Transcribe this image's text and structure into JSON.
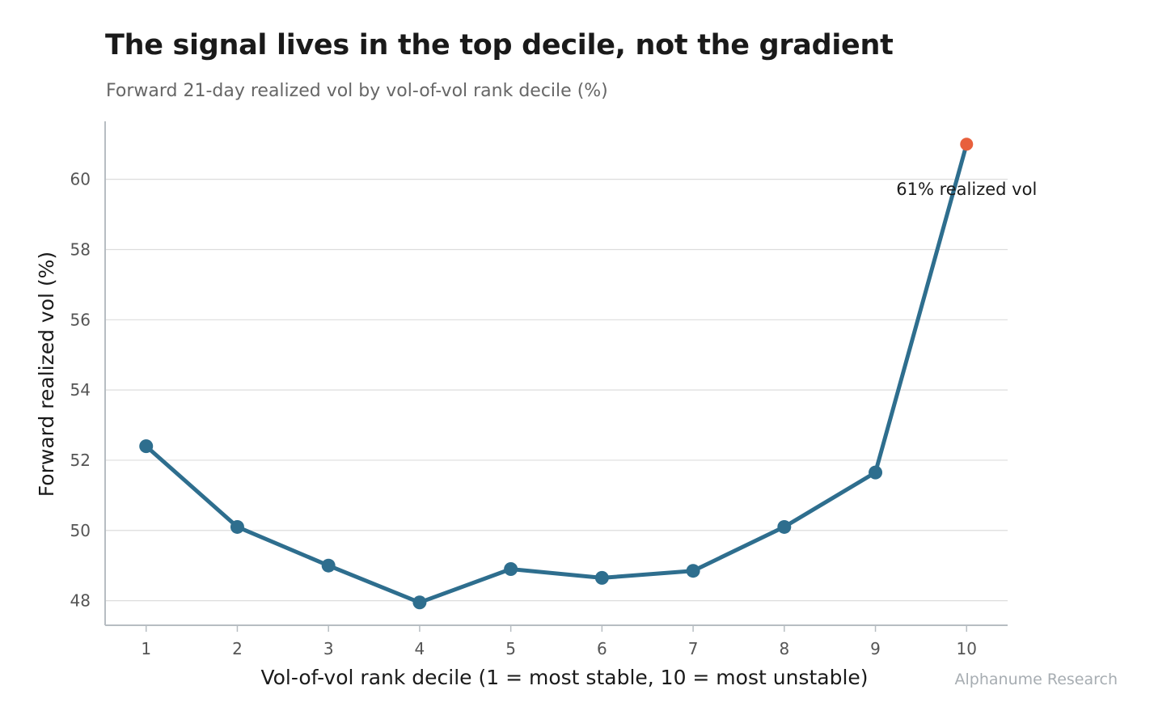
{
  "chart_data": {
    "type": "line",
    "title": "The signal lives in the top decile, not the gradient",
    "subtitle": "Forward 21-day realized vol by vol-of-vol rank decile (%)",
    "xlabel": "Vol-of-vol rank decile (1 = most stable, 10 = most unstable)",
    "ylabel": "Forward realized vol (%)",
    "x": [
      1,
      2,
      3,
      4,
      5,
      6,
      7,
      8,
      9,
      10
    ],
    "series": [
      {
        "values": [
          52.4,
          50.1,
          49.0,
          47.95,
          48.9,
          48.65,
          48.85,
          50.1,
          51.65,
          61.0
        ]
      }
    ],
    "xticks": [
      "1",
      "2",
      "3",
      "4",
      "5",
      "6",
      "7",
      "8",
      "9",
      "10"
    ],
    "yticks": [
      48,
      50,
      52,
      54,
      56,
      58,
      60
    ],
    "xlim": [
      0.55,
      10.45
    ],
    "ylim": [
      47.3,
      61.65
    ],
    "grid": "horizontal",
    "highlight": {
      "x": 10,
      "label": "61% realized vol"
    },
    "colors": {
      "line": "#2e6e8e",
      "highlight": "#e8603c",
      "grid": "#dddddd",
      "axis": "#b7bdc2"
    }
  },
  "footer": {
    "credit": "Alphanume Research"
  }
}
